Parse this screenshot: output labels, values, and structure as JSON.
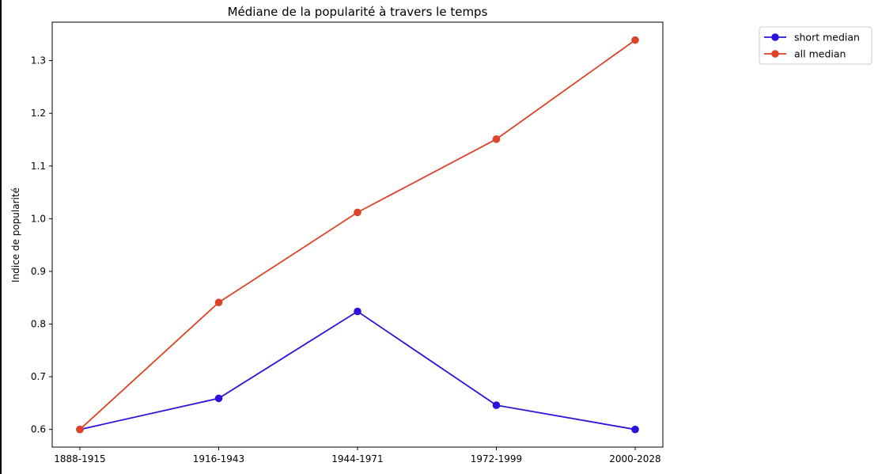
{
  "chart_data": {
    "type": "line",
    "title": "Médiane de la popularité à travers le temps",
    "xlabel": "",
    "ylabel": "Indice de popularité",
    "categories": [
      "1888-1915",
      "1916-1943",
      "1944-1971",
      "1972-1999",
      "2000-2028"
    ],
    "yticks": [
      "0.6",
      "0.7",
      "0.8",
      "0.9",
      "1.0",
      "1.1",
      "1.2",
      "1.3"
    ],
    "ylim": [
      0.5665,
      1.373
    ],
    "grid": false,
    "legend_position": "outside top-right",
    "series": [
      {
        "name": "short median",
        "color": "#2a14d9",
        "values": [
          0.6,
          0.659,
          0.824,
          0.646,
          0.6
        ]
      },
      {
        "name": "all median",
        "color": "#dc4327",
        "values": [
          0.6,
          0.841,
          1.012,
          1.151,
          1.339
        ]
      }
    ]
  }
}
